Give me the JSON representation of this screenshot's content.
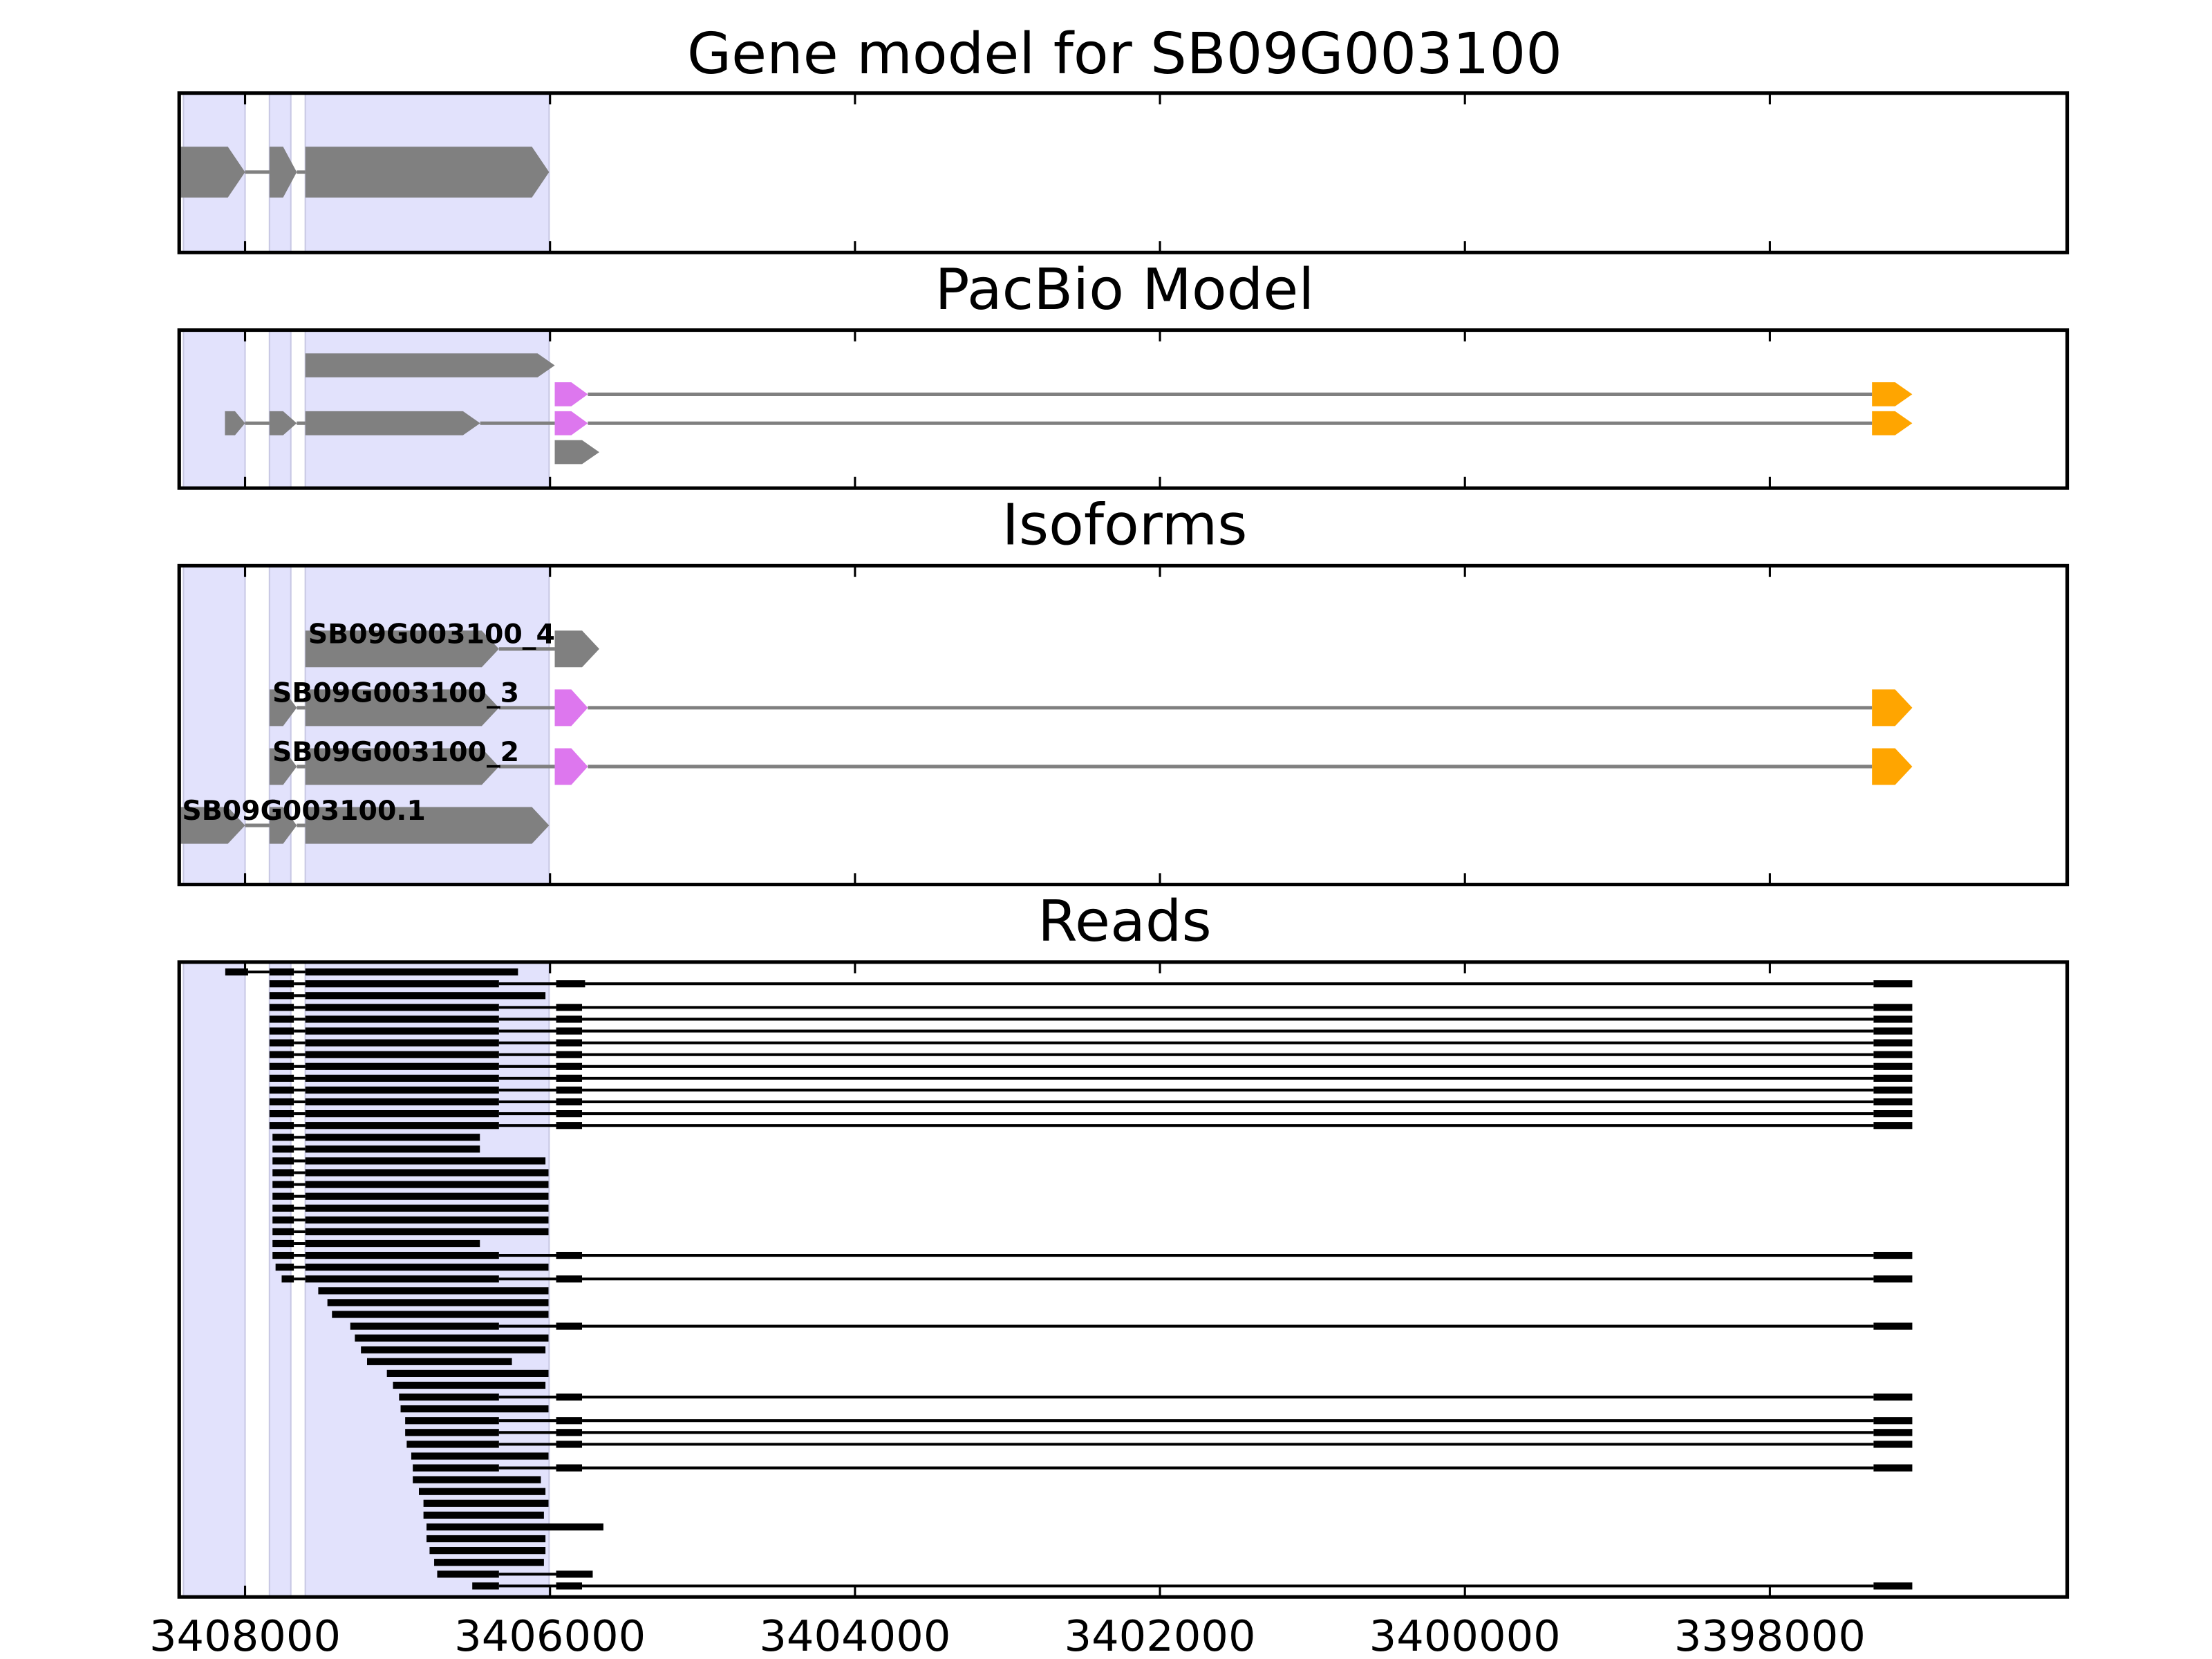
{
  "chart_data": [
    {
      "type": "gene-track",
      "title": "Gene model for SB09G003100",
      "xlim": [
        3408432,
        3396050
      ],
      "color": "#808080",
      "highlight_color": "#e2e2fc",
      "highlight": [
        [
          3408404,
          3408000
        ],
        [
          3407840,
          3407700
        ],
        [
          3407605,
          3406006
        ]
      ],
      "rows": [
        {
          "exons": [
            {
              "start": 3408432,
              "end": 3408000
            },
            {
              "start": 3407840,
              "end": 3407661
            },
            {
              "start": 3407605,
              "end": 3406006
            }
          ]
        }
      ]
    },
    {
      "type": "gene-track",
      "title": "PacBio Model",
      "xlim": [
        3408432,
        3396050
      ],
      "color": "#808080",
      "highlight_color": "#e2e2fc",
      "highlight": [
        [
          3408404,
          3408000
        ],
        [
          3407840,
          3407700
        ],
        [
          3407605,
          3406006
        ]
      ],
      "rows": [
        {
          "exons": [
            {
              "start": 3407605,
              "end": 3405969
            }
          ]
        },
        {
          "exons": [
            {
              "start": 3405969,
              "end": 3405752,
              "color": "#dd77ee"
            },
            {
              "start": 3397330,
              "end": 3397066,
              "color": "#ffa500"
            }
          ]
        },
        {
          "exons": [
            {
              "start": 3408132,
              "end": 3408000
            },
            {
              "start": 3407840,
              "end": 3407661
            },
            {
              "start": 3407605,
              "end": 3406458
            },
            {
              "start": 3405969,
              "end": 3405752,
              "color": "#dd77ee"
            },
            {
              "start": 3397330,
              "end": 3397066,
              "color": "#ffa500"
            }
          ]
        },
        {
          "exons": [
            {
              "start": 3405969,
              "end": 3405677
            }
          ]
        }
      ]
    },
    {
      "type": "gene-track",
      "title": "Isoforms",
      "xlim": [
        3408432,
        3396050
      ],
      "color": "#808080",
      "highlight_color": "#e2e2fc",
      "highlight": [
        [
          3408404,
          3408000
        ],
        [
          3407840,
          3407700
        ],
        [
          3407605,
          3406006
        ]
      ],
      "rows": [
        {
          "name": "SB09G003100_4",
          "exons": [
            {
              "start": 3407605,
              "end": 3406335
            },
            {
              "start": 3405969,
              "end": 3405677
            }
          ]
        },
        {
          "name": "SB09G003100_3",
          "exons": [
            {
              "start": 3407840,
              "end": 3407661
            },
            {
              "start": 3407605,
              "end": 3406335
            },
            {
              "start": 3405969,
              "end": 3405752,
              "color": "#dd77ee"
            },
            {
              "start": 3397330,
              "end": 3397066,
              "color": "#ffa500"
            }
          ]
        },
        {
          "name": "SB09G003100_2",
          "exons": [
            {
              "start": 3407840,
              "end": 3407661
            },
            {
              "start": 3407605,
              "end": 3406335
            },
            {
              "start": 3405969,
              "end": 3405752,
              "color": "#dd77ee"
            },
            {
              "start": 3397330,
              "end": 3397066,
              "color": "#ffa500"
            }
          ]
        },
        {
          "name": "SB09G003100.1",
          "exons": [
            {
              "start": 3408432,
              "end": 3408000
            },
            {
              "start": 3407840,
              "end": 3407661
            },
            {
              "start": 3407605,
              "end": 3406006
            }
          ]
        }
      ]
    },
    {
      "type": "reads",
      "title": "Reads",
      "xlim": [
        3408432,
        3396050
      ],
      "color": "#000000",
      "highlight_color": "#e2e2fc",
      "highlight": [
        [
          3408404,
          3408000
        ],
        [
          3407840,
          3407700
        ],
        [
          3407605,
          3406006
        ]
      ],
      "xticks": [
        3408000,
        3406000,
        3404000,
        3402000,
        3400000,
        3398000
      ],
      "reads": [
        [
          [
            3408130,
            3407980
          ],
          [
            3407840,
            3407680
          ],
          [
            3407605,
            3406210
          ]
        ],
        [
          [
            3407840,
            3407680
          ],
          [
            3407605,
            3406335
          ],
          [
            3405960,
            3405770
          ],
          [
            3397320,
            3397066
          ]
        ],
        [
          [
            3407840,
            3407680
          ],
          [
            3407605,
            3406030
          ]
        ],
        [
          [
            3407840,
            3407680
          ],
          [
            3407605,
            3406335
          ],
          [
            3405960,
            3405790
          ],
          [
            3397320,
            3397066
          ]
        ],
        [
          [
            3407840,
            3407680
          ],
          [
            3407605,
            3406335
          ],
          [
            3405960,
            3405790
          ],
          [
            3397320,
            3397066
          ]
        ],
        [
          [
            3407840,
            3407680
          ],
          [
            3407605,
            3406335
          ],
          [
            3405960,
            3405790
          ],
          [
            3397320,
            3397066
          ]
        ],
        [
          [
            3407840,
            3407680
          ],
          [
            3407605,
            3406335
          ],
          [
            3405960,
            3405790
          ],
          [
            3397320,
            3397066
          ]
        ],
        [
          [
            3407840,
            3407680
          ],
          [
            3407605,
            3406335
          ],
          [
            3405960,
            3405790
          ],
          [
            3397320,
            3397066
          ]
        ],
        [
          [
            3407840,
            3407680
          ],
          [
            3407605,
            3406335
          ],
          [
            3405960,
            3405790
          ],
          [
            3397320,
            3397066
          ]
        ],
        [
          [
            3407840,
            3407680
          ],
          [
            3407605,
            3406335
          ],
          [
            3405960,
            3405790
          ],
          [
            3397320,
            3397066
          ]
        ],
        [
          [
            3407840,
            3407680
          ],
          [
            3407605,
            3406335
          ],
          [
            3405960,
            3405790
          ],
          [
            3397320,
            3397066
          ]
        ],
        [
          [
            3407840,
            3407680
          ],
          [
            3407605,
            3406335
          ],
          [
            3405960,
            3405790
          ],
          [
            3397320,
            3397066
          ]
        ],
        [
          [
            3407840,
            3407680
          ],
          [
            3407605,
            3406335
          ],
          [
            3405960,
            3405790
          ],
          [
            3397320,
            3397066
          ]
        ],
        [
          [
            3407840,
            3407680
          ],
          [
            3407605,
            3406335
          ],
          [
            3405960,
            3405790
          ],
          [
            3397320,
            3397066
          ]
        ],
        [
          [
            3407820,
            3407680
          ],
          [
            3407605,
            3406460
          ]
        ],
        [
          [
            3407820,
            3407680
          ],
          [
            3407605,
            3406460
          ]
        ],
        [
          [
            3407820,
            3407680
          ],
          [
            3407605,
            3406030
          ]
        ],
        [
          [
            3407820,
            3407680
          ],
          [
            3407605,
            3406010
          ]
        ],
        [
          [
            3407820,
            3407680
          ],
          [
            3407605,
            3406010
          ]
        ],
        [
          [
            3407820,
            3407680
          ],
          [
            3407605,
            3406010
          ]
        ],
        [
          [
            3407820,
            3407680
          ],
          [
            3407605,
            3406010
          ]
        ],
        [
          [
            3407820,
            3407680
          ],
          [
            3407605,
            3406010
          ]
        ],
        [
          [
            3407820,
            3407680
          ],
          [
            3407605,
            3406010
          ]
        ],
        [
          [
            3407820,
            3407680
          ],
          [
            3407605,
            3406460
          ]
        ],
        [
          [
            3407820,
            3407680
          ],
          [
            3407605,
            3406335
          ],
          [
            3405960,
            3405790
          ],
          [
            3397320,
            3397066
          ]
        ],
        [
          [
            3407800,
            3407680
          ],
          [
            3407605,
            3406010
          ]
        ],
        [
          [
            3407760,
            3407680
          ],
          [
            3407605,
            3406335
          ],
          [
            3405960,
            3405790
          ],
          [
            3397320,
            3397066
          ]
        ],
        [
          [
            3407520,
            3406010
          ]
        ],
        [
          [
            3407460,
            3406010
          ]
        ],
        [
          [
            3407430,
            3406010
          ]
        ],
        [
          [
            3407310,
            3406335
          ],
          [
            3405960,
            3405790
          ],
          [
            3397320,
            3397066
          ]
        ],
        [
          [
            3407280,
            3406010
          ]
        ],
        [
          [
            3407240,
            3406030
          ]
        ],
        [
          [
            3407200,
            3406250
          ]
        ],
        [
          [
            3407070,
            3406010
          ]
        ],
        [
          [
            3407030,
            3406030
          ]
        ],
        [
          [
            3406990,
            3406335
          ],
          [
            3405960,
            3405790
          ],
          [
            3397320,
            3397066
          ]
        ],
        [
          [
            3406980,
            3406010
          ]
        ],
        [
          [
            3406950,
            3406335
          ],
          [
            3405960,
            3405790
          ],
          [
            3397320,
            3397066
          ]
        ],
        [
          [
            3406950,
            3406335
          ],
          [
            3405960,
            3405790
          ],
          [
            3397320,
            3397066
          ]
        ],
        [
          [
            3406940,
            3406335
          ],
          [
            3405960,
            3405790
          ],
          [
            3397320,
            3397066
          ]
        ],
        [
          [
            3406910,
            3406010
          ]
        ],
        [
          [
            3406900,
            3406335
          ],
          [
            3405960,
            3405790
          ],
          [
            3397320,
            3397066
          ]
        ],
        [
          [
            3406900,
            3406060
          ]
        ],
        [
          [
            3406860,
            3406030
          ]
        ],
        [
          [
            3406830,
            3406010
          ]
        ],
        [
          [
            3406830,
            3406040
          ]
        ],
        [
          [
            3406810,
            3405650
          ]
        ],
        [
          [
            3406810,
            3406030
          ]
        ],
        [
          [
            3406790,
            3406030
          ]
        ],
        [
          [
            3406760,
            3406040
          ]
        ],
        [
          [
            3406740,
            3406335
          ],
          [
            3405960,
            3405720
          ]
        ],
        [
          [
            3406510,
            3406335
          ],
          [
            3405960,
            3405790
          ],
          [
            3397320,
            3397066
          ]
        ]
      ]
    }
  ]
}
